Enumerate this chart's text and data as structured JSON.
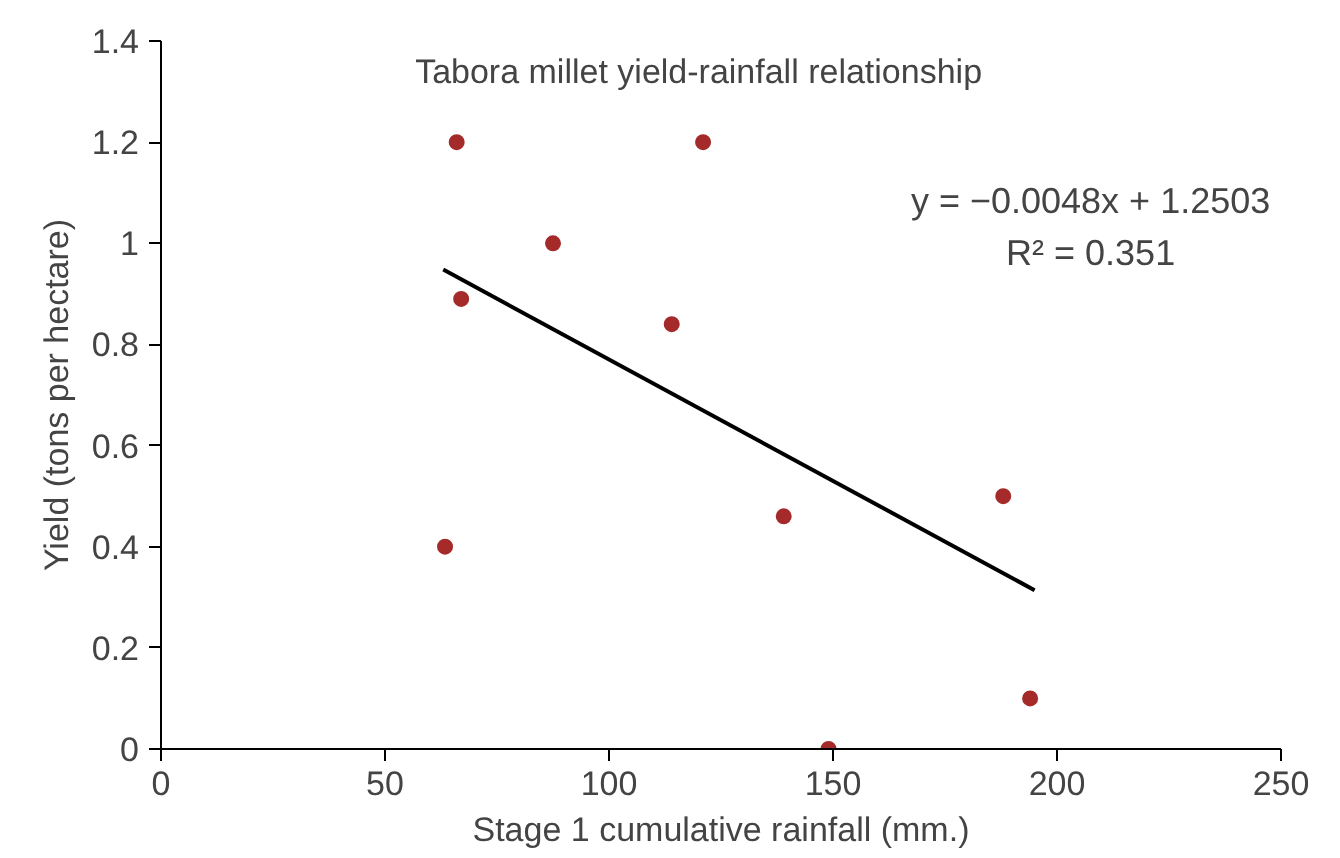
{
  "chart_data": {
    "type": "scatter",
    "title": "Tabora millet yield-rainfall relationship",
    "xlabel": "Stage 1 cumulative rainfall (mm.)",
    "ylabel": "Yield (tons per hectare)",
    "xlim": [
      0,
      250
    ],
    "xticks": [
      0,
      50,
      100,
      150,
      200,
      250
    ],
    "ylim": [
      0,
      1.4
    ],
    "yticks": [
      0,
      0.2,
      0.4,
      0.6,
      0.8,
      1,
      1.2,
      1.4
    ],
    "grid": false,
    "series": [
      {
        "marker": "circle",
        "color": "#a52a2a",
        "x": [
          66,
          67,
          63.4,
          87.5,
          121,
          114,
          139,
          188,
          149,
          194
        ],
        "values": [
          1.2,
          0.89,
          0.4,
          1.0,
          1.2,
          0.84,
          0.46,
          0.5,
          0.0,
          0.1
        ]
      },
      {
        "type": "line",
        "color": "#000000",
        "x": [
          63,
          195
        ],
        "values": [
          0.948,
          0.314
        ]
      }
    ],
    "annotations": [
      "y = −0.0048x + 1.2503",
      "R² = 0.351"
    ]
  }
}
